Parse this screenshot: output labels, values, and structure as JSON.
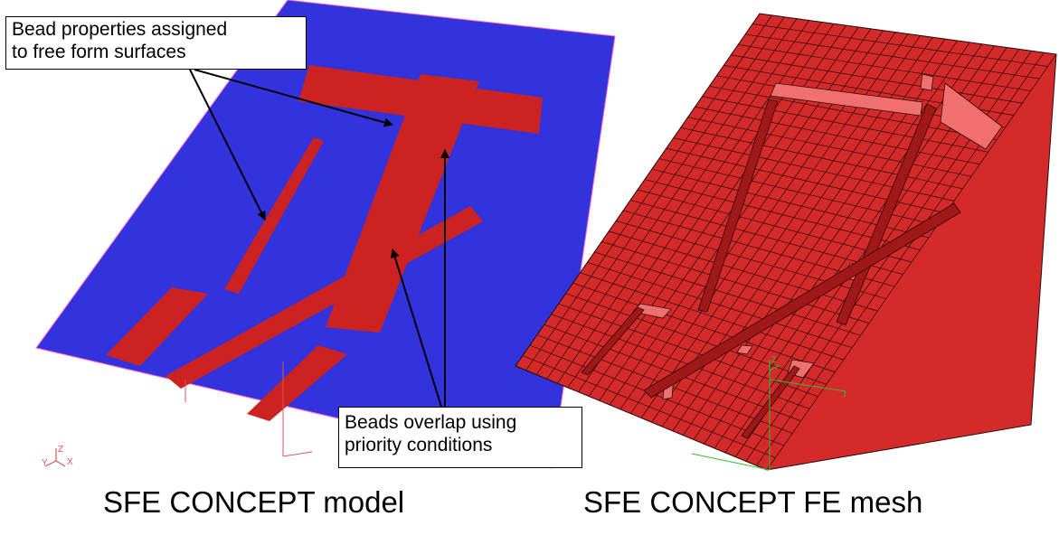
{
  "callouts": {
    "bead_properties": {
      "line1": "Bead properties assigned",
      "line2": "to free form surfaces"
    },
    "beads_overlap": {
      "line1": "Beads overlap using",
      "line2": "priority conditions"
    }
  },
  "captions": {
    "left": "SFE CONCEPT model",
    "right": "SFE CONCEPT FE mesh"
  },
  "colors": {
    "plate_blue": "#3333dd",
    "bead_red": "#cc2222",
    "mesh_red": "#d42a2a",
    "mesh_light": "#f07070",
    "mesh_line": "#2a0a0a",
    "axis_red": "#dd5555",
    "axis_green": "#33bb33"
  },
  "icons": {
    "left_triad": "xyz-axis-triad-icon",
    "center_triad": "xyz-axis-triad-icon",
    "right_triad": "xyz-axis-triad-icon"
  }
}
